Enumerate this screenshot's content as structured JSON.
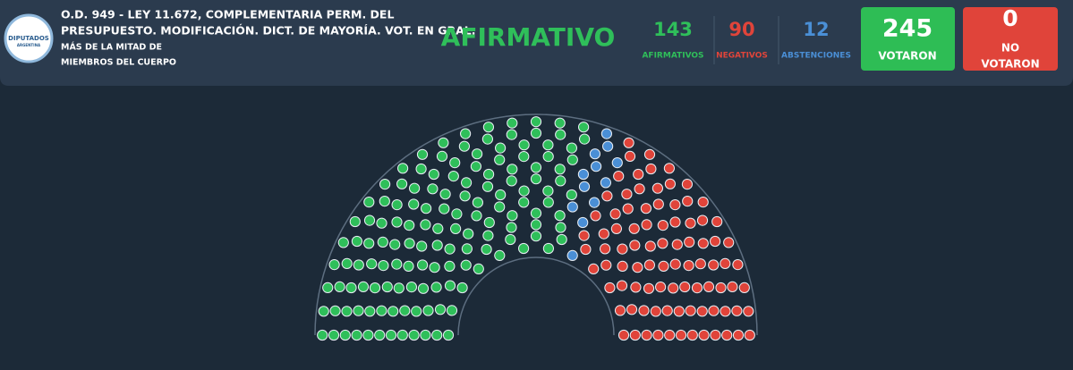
{
  "header": {
    "logo": "DIPUTADOS",
    "logo_sub": "ARGENTINA",
    "title_lines": [
      "O.D. 949 - LEY 11.672, COMPLEMENTARIA PERM. DEL",
      "PRESUPUESTO. MODIFICACIÓN. DICT. DE MAYORÍA. VOT. EN GRAL."
    ],
    "subtitle_lines": [
      "MÁS DE LA MITAD DE",
      "MIEMBROS DEL CUERPO"
    ],
    "result": "AFIRMATIVO"
  },
  "tally": [
    {
      "label": "AFIRMATIVOS",
      "value": 143,
      "color": "#2fbf5a"
    },
    {
      "label": "ABSTENCIONES",
      "value": 12,
      "color": "#4a8fd6"
    },
    {
      "label": "NEGATIVOS",
      "value": 90,
      "color": "#e0443a"
    }
  ],
  "voted": {
    "value": 245,
    "label": "VOTARON"
  },
  "not_voted": {
    "value": 0,
    "label_lines": [
      "NO",
      "VOTARON"
    ]
  }
}
